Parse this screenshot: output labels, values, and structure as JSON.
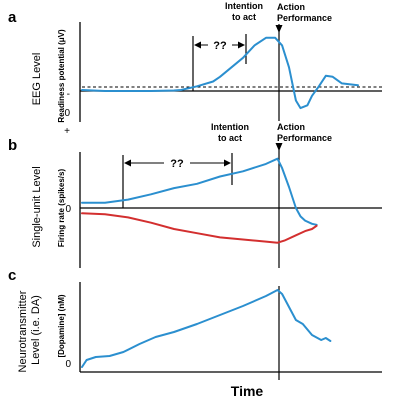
{
  "chart_data": [
    {
      "type": "line",
      "panel_letter": "a",
      "row_label": "EEG Level",
      "ylabel": "Readiness potential (μV)",
      "y_tick_labels": {
        "minus": "-",
        "zero": "0",
        "plus": "+"
      },
      "annotations": {
        "intention": [
          "Intention",
          "to act"
        ],
        "action": [
          "Action",
          "Performance"
        ],
        "interval": "??"
      },
      "reference_line": "dashed",
      "series": [
        {
          "color": "#2b8fcf",
          "points": [
            [
              0,
              0.1
            ],
            [
              0.05,
              0.05
            ],
            [
              0.1,
              0
            ],
            [
              0.2,
              0
            ],
            [
              0.3,
              0
            ],
            [
              0.4,
              0.05
            ],
            [
              0.43,
              0.1
            ],
            [
              0.5,
              0.5
            ],
            [
              0.57,
              1
            ],
            [
              0.6,
              1.5
            ],
            [
              0.65,
              2.5
            ],
            [
              0.7,
              3.5
            ],
            [
              0.75,
              4.8
            ],
            [
              0.8,
              5.6
            ],
            [
              0.84,
              5.6
            ],
            [
              0.87,
              4.8
            ],
            [
              0.9,
              2.5
            ],
            [
              0.93,
              -1
            ],
            [
              0.95,
              -1.8
            ],
            [
              0.98,
              -1.5
            ],
            [
              1.0,
              -0.5
            ],
            [
              1.03,
              0.5
            ],
            [
              1.06,
              1.6
            ],
            [
              1.09,
              1.5
            ],
            [
              1.13,
              0.8
            ],
            [
              1.2,
              0.6
            ]
          ]
        }
      ]
    },
    {
      "type": "line",
      "panel_letter": "b",
      "row_label": "Single-unit Level",
      "ylabel": "Firing rate (spikes/s)",
      "y_tick_labels": {
        "zero": "0"
      },
      "annotations": {
        "intention": [
          "Intention",
          "to act"
        ],
        "action": [
          "Action",
          "Performance"
        ],
        "interval": "??"
      },
      "series": [
        {
          "color": "#2b8fcf",
          "points": [
            [
              0,
              0.5
            ],
            [
              0.1,
              0.5
            ],
            [
              0.2,
              0.8
            ],
            [
              0.3,
              1.3
            ],
            [
              0.4,
              1.9
            ],
            [
              0.5,
              2.3
            ],
            [
              0.6,
              3.0
            ],
            [
              0.7,
              3.5
            ],
            [
              0.8,
              4.2
            ],
            [
              0.85,
              4.7
            ],
            [
              0.87,
              3.8
            ],
            [
              0.9,
              2.0
            ],
            [
              0.93,
              0
            ],
            [
              0.95,
              -0.8
            ],
            [
              0.97,
              -1.2
            ],
            [
              1.0,
              -1.5
            ],
            [
              1.02,
              -1.6
            ]
          ]
        },
        {
          "color": "#d32f2f",
          "points": [
            [
              0,
              -0.5
            ],
            [
              0.1,
              -0.6
            ],
            [
              0.2,
              -0.9
            ],
            [
              0.3,
              -1.4
            ],
            [
              0.4,
              -2.0
            ],
            [
              0.5,
              -2.4
            ],
            [
              0.6,
              -2.8
            ],
            [
              0.7,
              -3.0
            ],
            [
              0.8,
              -3.2
            ],
            [
              0.85,
              -3.3
            ],
            [
              0.88,
              -3.1
            ],
            [
              0.93,
              -2.6
            ],
            [
              0.97,
              -2.2
            ],
            [
              1.0,
              -2.0
            ],
            [
              1.02,
              -1.7
            ]
          ]
        }
      ]
    },
    {
      "type": "line",
      "panel_letter": "c",
      "row_label": "Neurotransmitter Level (i.e. DA)",
      "ylabel": "[Dopamine] (nM)",
      "y_tick_labels": {
        "zero": "0"
      },
      "xlabel": "Time",
      "series": [
        {
          "color": "#2b8fcf",
          "points": [
            [
              0,
              0.5
            ],
            [
              0.02,
              1.2
            ],
            [
              0.06,
              1.5
            ],
            [
              0.12,
              1.6
            ],
            [
              0.18,
              2.0
            ],
            [
              0.25,
              2.8
            ],
            [
              0.32,
              3.5
            ],
            [
              0.4,
              4.0
            ],
            [
              0.5,
              4.8
            ],
            [
              0.6,
              5.7
            ],
            [
              0.7,
              6.6
            ],
            [
              0.8,
              7.6
            ],
            [
              0.85,
              8.2
            ],
            [
              0.87,
              7.8
            ],
            [
              0.9,
              6.5
            ],
            [
              0.93,
              5.2
            ],
            [
              0.96,
              4.8
            ],
            [
              1.0,
              3.7
            ],
            [
              1.04,
              3.2
            ],
            [
              1.06,
              3.4
            ],
            [
              1.08,
              3.1
            ]
          ]
        }
      ]
    }
  ]
}
